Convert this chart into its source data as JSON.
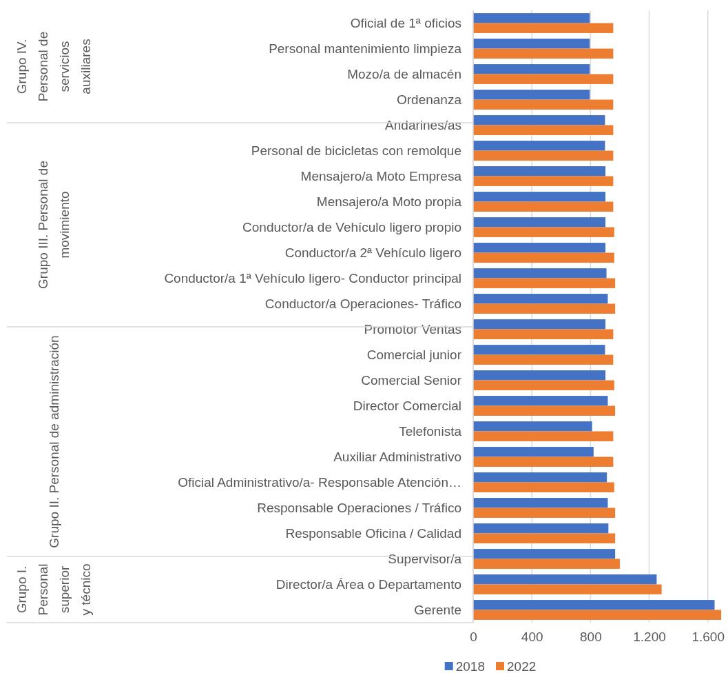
{
  "chart_data": {
    "type": "bar",
    "orientation": "horizontal",
    "categories": [
      "Oficial de 1ª oficios",
      "Personal mantenimiento limpieza",
      "Mozo/a de almacén",
      "Ordenanza",
      "Andarines/as",
      "Personal de bicicletas con remolque",
      "Mensajero/a Moto Empresa",
      "Mensajero/a Moto propia",
      "Conductor/a de Vehículo ligero propio",
      "Conductor/a 2ª Vehículo ligero",
      "Conductor/a 1ª Vehículo ligero- Conductor principal",
      "Conductor/a Operaciones- Tráfico",
      "Promotor Ventas",
      "Comercial junior",
      "Comercial Senior",
      "Director Comercial",
      "Telefonista",
      "Auxiliar Administrativo",
      "Oficial Administrativo/a- Responsable Atención…",
      "Responsable Operaciones / Tráfico",
      "Responsable Oficina / Calidad",
      "Supervisor/a",
      "Director/a Área o Departamento",
      "Gerente"
    ],
    "series": [
      {
        "name": "2018",
        "color": "#4472c4",
        "values": [
          795,
          795,
          795,
          795,
          899,
          899,
          902,
          902,
          902,
          902,
          909,
          918,
          902,
          899,
          902,
          918,
          811,
          821,
          912,
          918,
          922,
          968,
          1251,
          1646
        ]
      },
      {
        "name": "2022",
        "color": "#ed7d31",
        "values": [
          955,
          955,
          955,
          955,
          955,
          955,
          955,
          955,
          962,
          962,
          968,
          968,
          955,
          955,
          962,
          968,
          955,
          955,
          962,
          968,
          968,
          1000,
          1285,
          1691
        ]
      }
    ],
    "annotations": [
      "Grupo IV. Personal de servicios auxiliares",
      "Grupo III. Personal de movimiento",
      "Grupo II. Personal de administración",
      "Grupo I. Personal superior y técnico"
    ],
    "xlim": [
      0,
      1700
    ],
    "xticks": [
      0,
      400,
      800,
      {
        "value": 1200,
        "label": "1.200"
      },
      {
        "value": 1600,
        "label": "1.600"
      }
    ],
    "grid": "x",
    "legend": "bottom"
  }
}
